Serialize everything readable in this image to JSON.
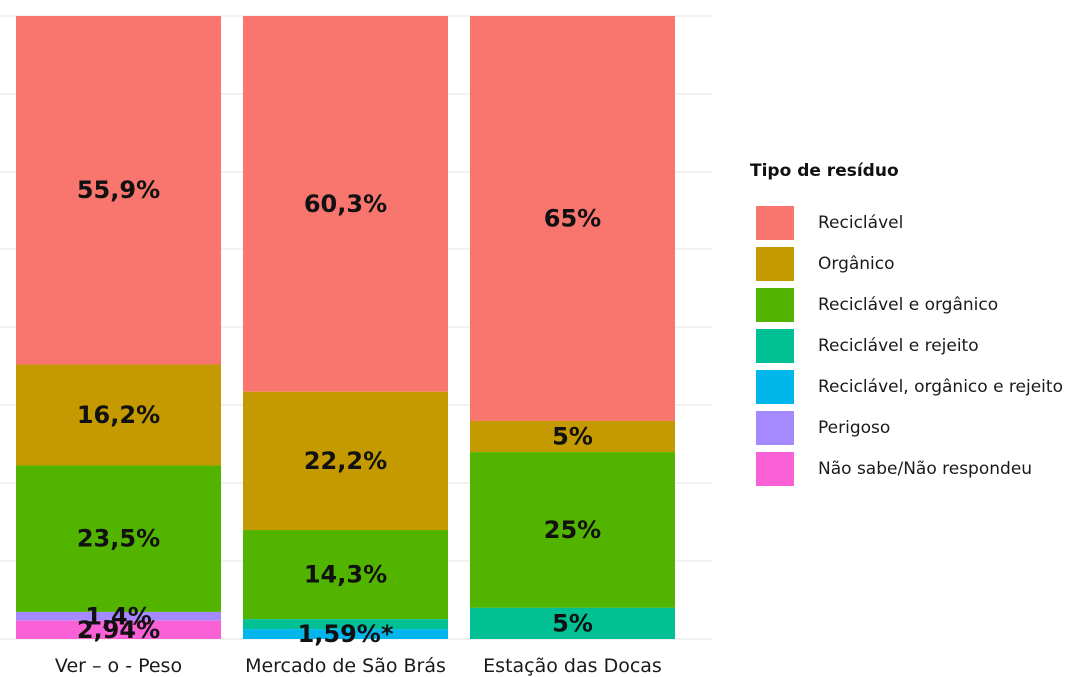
{
  "chart_data": {
    "type": "bar",
    "stacked": true,
    "normalized": true,
    "categories": [
      "Ver – o - Peso",
      "Mercado de  São Brás",
      "Estação das Docas"
    ],
    "series": [
      {
        "name": "Reciclável",
        "color": "#F8766D",
        "values": [
          55.9,
          60.3,
          65
        ],
        "labels": [
          "55,9%",
          "60,3%",
          "65%"
        ]
      },
      {
        "name": "Orgânico",
        "color": "#C49A00",
        "values": [
          16.2,
          22.2,
          5
        ],
        "labels": [
          "16,2%",
          "22,2%",
          "5%"
        ]
      },
      {
        "name": "Reciclável e orgânico",
        "color": "#53B400",
        "values": [
          23.5,
          14.3,
          25
        ],
        "labels": [
          "23,5%",
          "14,3%",
          "25%"
        ]
      },
      {
        "name": "Reciclável e rejeito",
        "color": "#00C094",
        "values": [
          0,
          1.6,
          5
        ],
        "labels": [
          "",
          "",
          "5%"
        ]
      },
      {
        "name": "Reciclável, orgânico e rejeito",
        "color": "#00B6EB",
        "values": [
          0,
          1.59,
          0
        ],
        "labels": [
          "",
          "1,59%*",
          ""
        ]
      },
      {
        "name": "Perigoso",
        "color": "#A58AFF",
        "values": [
          1.4,
          0,
          0
        ],
        "labels": [
          "1,4%",
          "",
          ""
        ]
      },
      {
        "name": "Não sabe/Não respondeu",
        "color": "#FB61D7",
        "values": [
          2.94,
          0,
          0
        ],
        "labels": [
          "2,94%",
          "",
          ""
        ]
      }
    ],
    "legend": {
      "title": "Tipo de resíduo",
      "position": "right"
    },
    "grid": true
  }
}
